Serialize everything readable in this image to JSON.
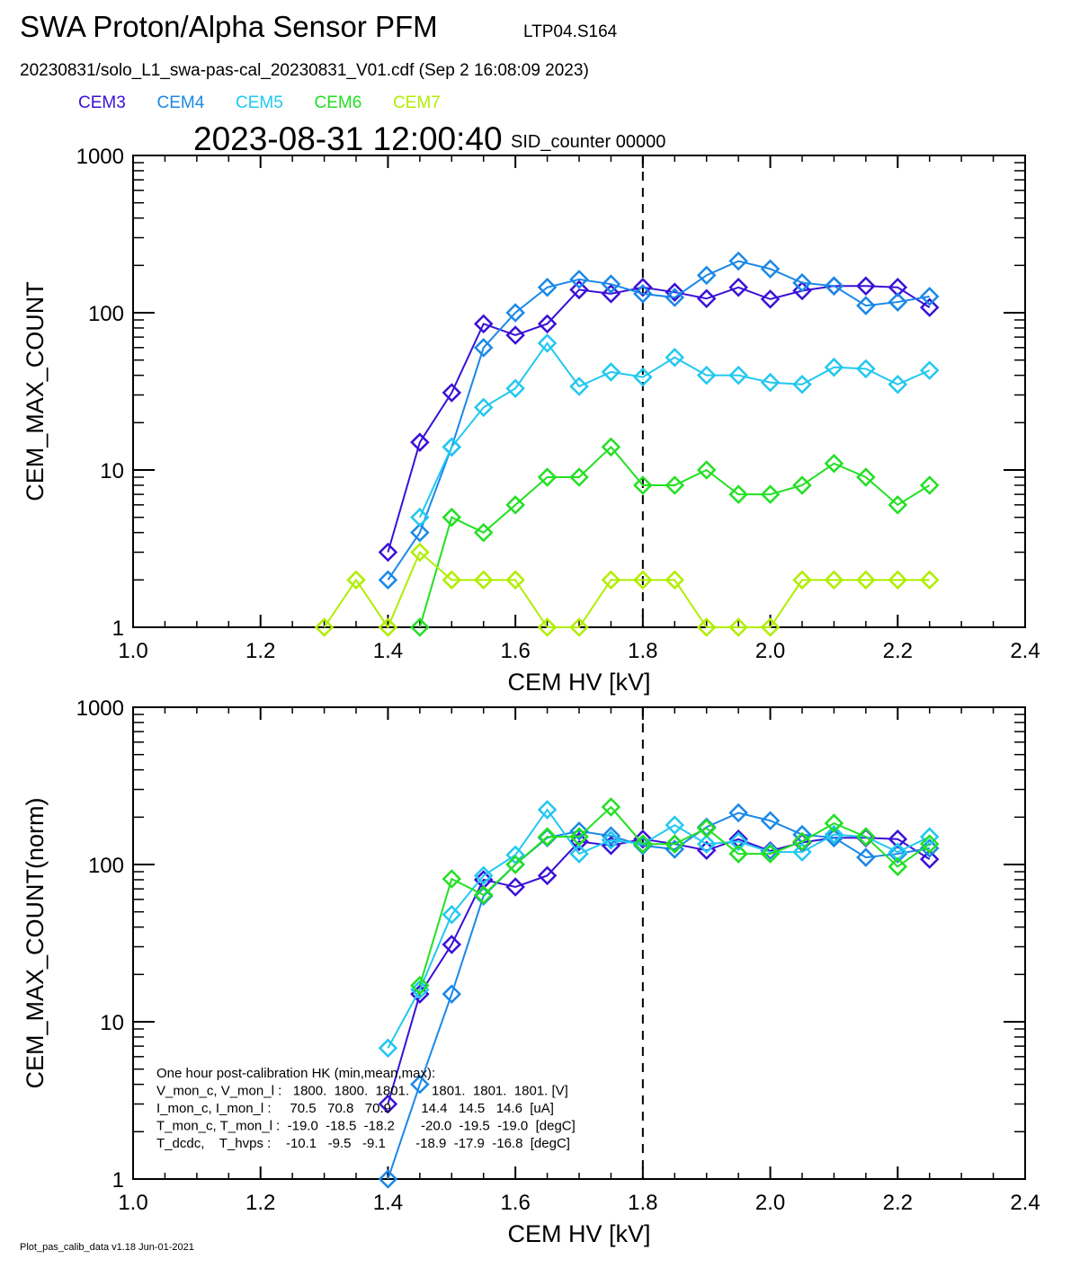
{
  "header": {
    "title": "SWA Proton/Alpha Sensor PFM",
    "tag": "LTP04.S164",
    "file": "20230831/solo_L1_swa-pas-cal_20230831_V01.cdf  (Sep  2 16:08:09 2023)",
    "timestamp": "2023-08-31 12:00:40",
    "counter": "SID_counter 00000",
    "footer": "Plot_pas_calib_data v1.18 Jun-01-2021"
  },
  "chart_data": [
    {
      "type": "line",
      "ylabel": "CEM_MAX_COUNT",
      "xlabel": "CEM HV [kV]",
      "log_y": true,
      "marker": "diamond",
      "vline": 1.8,
      "x": [
        1.3,
        1.35,
        1.4,
        1.45,
        1.5,
        1.55,
        1.6,
        1.65,
        1.7,
        1.75,
        1.8,
        1.85,
        1.9,
        1.95,
        2.0,
        2.05,
        2.1,
        2.15,
        2.2,
        2.25
      ],
      "xlim": [
        1.0,
        2.4
      ],
      "ylim": [
        1,
        1000
      ],
      "xticks": [
        {
          "value": 1.0,
          "label": "1.0"
        },
        1.2,
        1.4,
        1.6,
        1.8,
        {
          "value": 2.0,
          "label": "2.0"
        },
        2.2,
        2.4
      ],
      "yticks": [
        1,
        10,
        100,
        1000
      ],
      "series": [
        {
          "name": "CEM3",
          "color": "#3a10d6",
          "values": [
            null,
            null,
            3,
            15,
            31,
            85,
            72,
            85,
            140,
            132,
            145,
            135,
            123,
            145,
            122,
            138,
            148,
            148,
            145,
            108
          ]
        },
        {
          "name": "CEM4",
          "color": "#1a88e8",
          "values": [
            null,
            null,
            2,
            4,
            14,
            60,
            100,
            145,
            163,
            152,
            132,
            125,
            173,
            213,
            190,
            155,
            148,
            111,
            117,
            127
          ]
        },
        {
          "name": "CEM5",
          "color": "#22c8f0",
          "values": [
            null,
            null,
            null,
            5,
            14,
            25,
            33,
            64,
            34,
            42,
            39,
            52,
            40,
            40,
            36,
            35,
            45,
            44,
            35,
            43
          ]
        },
        {
          "name": "CEM6",
          "color": "#22e022",
          "values": [
            null,
            null,
            null,
            1,
            5,
            4,
            6,
            9,
            9,
            14,
            8,
            8,
            10,
            7,
            7,
            8,
            11,
            9,
            6,
            8
          ]
        },
        {
          "name": "CEM7",
          "color": "#b0ee00",
          "values": [
            1,
            2,
            1,
            3,
            2,
            2,
            2,
            1,
            1,
            2,
            2,
            2,
            1,
            1,
            1,
            2,
            2,
            2,
            2,
            2
          ]
        }
      ]
    },
    {
      "type": "line",
      "ylabel": "CEM_MAX_COUNT(norm)",
      "xlabel": "CEM HV [kV]",
      "log_y": true,
      "marker": "diamond",
      "vline": 1.8,
      "x": [
        1.4,
        1.45,
        1.5,
        1.55,
        1.6,
        1.65,
        1.7,
        1.75,
        1.8,
        1.85,
        1.9,
        1.95,
        2.0,
        2.05,
        2.1,
        2.15,
        2.2,
        2.25
      ],
      "xlim": [
        1.0,
        2.4
      ],
      "ylim": [
        1,
        1000
      ],
      "xticks": [
        {
          "value": 1.0,
          "label": "1.0"
        },
        1.2,
        1.4,
        1.6,
        1.8,
        {
          "value": 2.0,
          "label": "2.0"
        },
        2.2,
        2.4
      ],
      "yticks": [
        1,
        10,
        100,
        1000
      ],
      "annotations": [
        "One hour post-calibration HK (min,mean,max):",
        "V_mon_c, V_mon_l :   1800.  1800.  1801.      1801.  1801.  1801. [V]",
        "I_mon_c, I_mon_l :     70.5   70.8   70.9        14.4   14.5   14.6  [uA]",
        "T_mon_c, T_mon_l :  -19.0  -18.5  -18.2       -20.0  -19.5  -19.0  [degC]",
        "T_dcdc,    T_hvps :    -10.1   -9.5   -9.1        -18.9  -17.9  -16.8  [degC]"
      ],
      "series": [
        {
          "name": "CEM3",
          "color": "#3a10d6",
          "values": [
            3,
            15,
            31,
            80,
            72,
            85,
            140,
            132,
            145,
            135,
            123,
            145,
            122,
            138,
            148,
            148,
            145,
            108
          ]
        },
        {
          "name": "CEM4",
          "color": "#1a88e8",
          "values": [
            1,
            4,
            15,
            63,
            100,
            148,
            163,
            152,
            132,
            125,
            173,
            213,
            190,
            155,
            148,
            111,
            117,
            127
          ]
        },
        {
          "name": "CEM5",
          "color": "#22c8f0",
          "values": [
            6.8,
            16,
            48,
            85,
            115,
            223,
            117,
            143,
            135,
            178,
            135,
            140,
            120,
            120,
            155,
            150,
            120,
            150
          ]
        },
        {
          "name": "CEM6",
          "color": "#22e022",
          "values": [
            null,
            17,
            81,
            64,
            100,
            150,
            150,
            232,
            135,
            135,
            170,
            117,
            117,
            140,
            183,
            150,
            97,
            135
          ]
        }
      ]
    }
  ]
}
